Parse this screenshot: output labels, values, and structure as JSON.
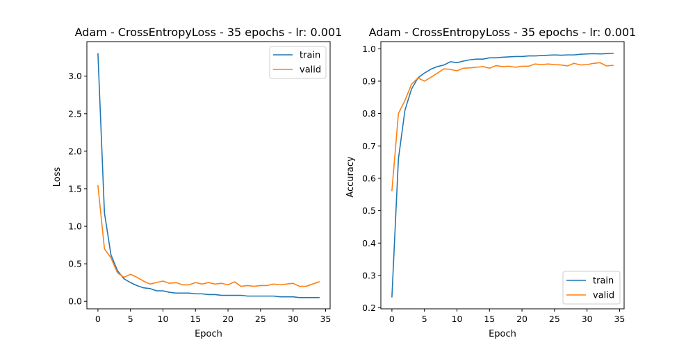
{
  "chart_data": [
    {
      "type": "line",
      "title": "Adam - CrossEntropyLoss - 35 epochs - lr: 0.001",
      "xlabel": "Epoch",
      "ylabel": "Loss",
      "xlim": [
        -1.7,
        35.7
      ],
      "ylim": [
        -0.1,
        3.46
      ],
      "xticks": [
        0,
        5,
        10,
        15,
        20,
        25,
        30,
        35
      ],
      "yticks": [
        0.0,
        0.5,
        1.0,
        1.5,
        2.0,
        2.5,
        3.0
      ],
      "ytick_labels": [
        "0.0",
        "0.5",
        "1.0",
        "1.5",
        "2.0",
        "2.5",
        "3.0"
      ],
      "legend": "top-right",
      "grid": false,
      "x": [
        0,
        1,
        2,
        3,
        4,
        5,
        6,
        7,
        8,
        9,
        10,
        11,
        12,
        13,
        14,
        15,
        16,
        17,
        18,
        19,
        20,
        21,
        22,
        23,
        24,
        25,
        26,
        27,
        28,
        29,
        30,
        31,
        32,
        33,
        34
      ],
      "series": [
        {
          "name": "train",
          "color": "#1f77b4",
          "values": [
            3.3,
            1.18,
            0.62,
            0.41,
            0.3,
            0.25,
            0.21,
            0.18,
            0.17,
            0.14,
            0.14,
            0.12,
            0.11,
            0.11,
            0.11,
            0.1,
            0.1,
            0.09,
            0.09,
            0.08,
            0.08,
            0.08,
            0.08,
            0.07,
            0.07,
            0.07,
            0.07,
            0.07,
            0.06,
            0.06,
            0.06,
            0.05,
            0.05,
            0.05,
            0.05
          ]
        },
        {
          "name": "valid",
          "color": "#ff7f0e",
          "values": [
            1.54,
            0.7,
            0.58,
            0.38,
            0.32,
            0.36,
            0.32,
            0.27,
            0.23,
            0.25,
            0.27,
            0.24,
            0.25,
            0.22,
            0.22,
            0.25,
            0.23,
            0.25,
            0.23,
            0.24,
            0.22,
            0.26,
            0.2,
            0.21,
            0.2,
            0.21,
            0.21,
            0.23,
            0.22,
            0.23,
            0.24,
            0.2,
            0.2,
            0.23,
            0.26
          ]
        }
      ]
    },
    {
      "type": "line",
      "title": "Adam - CrossEntropyLoss - 35 epochs - lr: 0.001",
      "xlabel": "Epoch",
      "ylabel": "Accuracy",
      "xlim": [
        -1.7,
        35.7
      ],
      "ylim": [
        0.197,
        1.022
      ],
      "xticks": [
        0,
        5,
        10,
        15,
        20,
        25,
        30,
        35
      ],
      "yticks": [
        0.2,
        0.3,
        0.4,
        0.5,
        0.6,
        0.7,
        0.8,
        0.9,
        1.0
      ],
      "ytick_labels": [
        "0.2",
        "0.3",
        "0.4",
        "0.5",
        "0.6",
        "0.7",
        "0.8",
        "0.9",
        "1.0"
      ],
      "legend": "bottom-right",
      "grid": false,
      "x": [
        0,
        1,
        2,
        3,
        4,
        5,
        6,
        7,
        8,
        9,
        10,
        11,
        12,
        13,
        14,
        15,
        16,
        17,
        18,
        19,
        20,
        21,
        22,
        23,
        24,
        25,
        26,
        27,
        28,
        29,
        30,
        31,
        32,
        33,
        34
      ],
      "series": [
        {
          "name": "train",
          "color": "#1f77b4",
          "values": [
            0.234,
            0.66,
            0.81,
            0.875,
            0.91,
            0.925,
            0.937,
            0.945,
            0.95,
            0.96,
            0.957,
            0.962,
            0.966,
            0.968,
            0.968,
            0.972,
            0.972,
            0.974,
            0.975,
            0.976,
            0.976,
            0.978,
            0.978,
            0.979,
            0.98,
            0.981,
            0.98,
            0.981,
            0.981,
            0.983,
            0.984,
            0.985,
            0.984,
            0.985,
            0.986
          ]
        },
        {
          "name": "valid",
          "color": "#ff7f0e",
          "values": [
            0.562,
            0.8,
            0.84,
            0.89,
            0.91,
            0.9,
            0.912,
            0.925,
            0.938,
            0.936,
            0.932,
            0.94,
            0.941,
            0.943,
            0.945,
            0.94,
            0.948,
            0.945,
            0.946,
            0.943,
            0.946,
            0.946,
            0.953,
            0.951,
            0.953,
            0.951,
            0.95,
            0.947,
            0.955,
            0.95,
            0.951,
            0.955,
            0.957,
            0.947,
            0.949
          ]
        }
      ]
    }
  ]
}
